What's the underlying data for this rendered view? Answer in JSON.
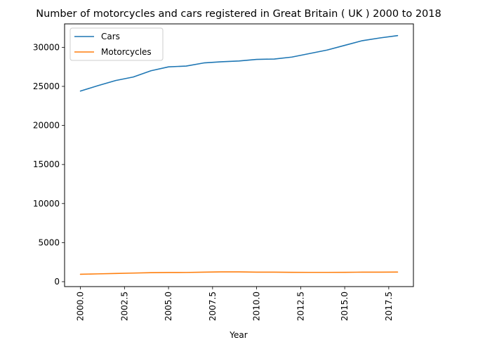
{
  "chart_data": {
    "type": "line",
    "title": "Number of motorcycles and cars registered in Great Britain ( UK ) 2000 to 2018",
    "xlabel": "Year",
    "ylabel": "",
    "x": [
      2000,
      2001,
      2002,
      2003,
      2004,
      2005,
      2006,
      2007,
      2008,
      2009,
      2010,
      2011,
      2012,
      2013,
      2014,
      2015,
      2016,
      2017,
      2018
    ],
    "series": [
      {
        "name": "Cars",
        "color": "#1f77b4",
        "values": [
          24400,
          25100,
          25750,
          26200,
          27000,
          27500,
          27600,
          28000,
          28150,
          28250,
          28450,
          28500,
          28750,
          29200,
          29650,
          30250,
          30850,
          31200,
          31500
        ]
      },
      {
        "name": "Motorcycles",
        "color": "#ff7f0e",
        "values": [
          950,
          1000,
          1050,
          1100,
          1150,
          1170,
          1180,
          1220,
          1250,
          1250,
          1220,
          1220,
          1200,
          1190,
          1190,
          1200,
          1220,
          1220,
          1230
        ]
      }
    ],
    "xlim": [
      1999.1,
      2018.9
    ],
    "ylim": [
      -630,
      33000
    ],
    "xticks": [
      2000.0,
      2002.5,
      2005.0,
      2007.5,
      2010.0,
      2012.5,
      2015.0,
      2017.5
    ],
    "xtick_labels": [
      "2000.0",
      "2002.5",
      "2005.0",
      "2007.5",
      "2010.0",
      "2012.5",
      "2015.0",
      "2017.5"
    ],
    "yticks": [
      0,
      5000,
      10000,
      15000,
      20000,
      25000,
      30000
    ],
    "ytick_labels": [
      "0",
      "5000",
      "10000",
      "15000",
      "20000",
      "25000",
      "30000"
    ],
    "legend": "top-left",
    "grid": false
  }
}
